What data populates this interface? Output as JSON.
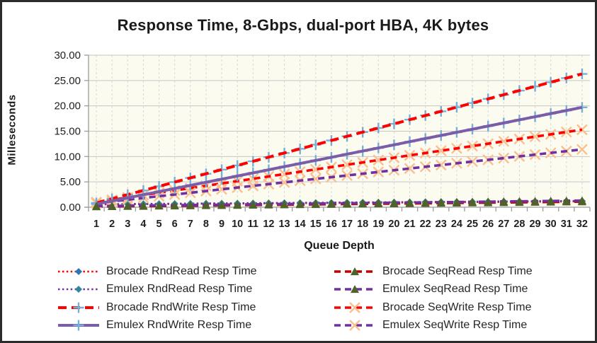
{
  "chart_data": {
    "type": "line",
    "title": "Response Time, 8-Gbps, dual-port HBA, 4K bytes",
    "xlabel": "Queue Depth",
    "ylabel": "Milleseconds",
    "ylim": [
      0,
      30
    ],
    "ytick_step": 5,
    "yticks": [
      "0.00",
      "5.00",
      "10.00",
      "15.00",
      "20.00",
      "25.00",
      "30.00"
    ],
    "x": [
      1,
      2,
      3,
      4,
      5,
      6,
      7,
      8,
      9,
      10,
      11,
      12,
      13,
      14,
      15,
      16,
      17,
      18,
      19,
      20,
      21,
      22,
      23,
      24,
      25,
      26,
      27,
      28,
      29,
      30,
      31,
      32
    ],
    "grid": {
      "horizontal": "solid",
      "vertical": "dashed"
    },
    "legend_position": "bottom-two-columns",
    "colors": {
      "plot_bg": "#FBFBF0",
      "grid_horizontal": "#C5C5C5",
      "grid_vertical": "#D8D8D8",
      "axis": "#9C9C9C",
      "red": "#FF0000",
      "dark_red": "#C00000",
      "purple": "#7030A0",
      "purple_solid": "#7A5CA8",
      "marker_plus_blue": "#77AFD6",
      "marker_x_peach": "#FABF8F",
      "marker_triangle_green": "#4F6228",
      "marker_diamond_blue": "#2E75B6",
      "marker_diamond_teal": "#31859C"
    },
    "paint_order": [
      0,
      1,
      4,
      6,
      7,
      2,
      3,
      5
    ],
    "legend_order": [
      0,
      4,
      1,
      5,
      2,
      6,
      3,
      7
    ],
    "series": [
      {
        "key": "brocade-rndread",
        "name": "Brocade RndRead Resp Time",
        "color": "#FF0000",
        "dash": "2.5 3.4",
        "width": 2.6,
        "marker": "diamond",
        "marker_color": "#2E75B6",
        "marker_size": 5,
        "marker_first": false,
        "values": [
          0.55,
          0.57,
          0.59,
          0.61,
          0.63,
          0.65,
          0.67,
          0.69,
          0.7,
          0.72,
          0.74,
          0.76,
          0.78,
          0.8,
          0.82,
          0.84,
          0.86,
          0.88,
          0.9,
          0.92,
          0.94,
          0.96,
          0.98,
          0.99,
          1.01,
          1.03,
          1.05,
          1.07,
          1.09,
          1.11,
          1.13,
          1.15
        ]
      },
      {
        "key": "emulex-rndread",
        "name": "Emulex RndRead Resp Time",
        "color": "#7030A0",
        "dash": "2.5 3.4",
        "width": 2.6,
        "marker": "diamond",
        "marker_color": "#31859C",
        "marker_size": 5,
        "marker_first": false,
        "values": [
          0.6,
          0.62,
          0.64,
          0.66,
          0.68,
          0.7,
          0.73,
          0.75,
          0.77,
          0.79,
          0.81,
          0.83,
          0.85,
          0.87,
          0.89,
          0.91,
          0.94,
          0.96,
          0.98,
          1.0,
          1.02,
          1.04,
          1.06,
          1.08,
          1.1,
          1.12,
          1.15,
          1.17,
          1.19,
          1.21,
          1.23,
          1.25
        ]
      },
      {
        "key": "brocade-rndwrite",
        "name": "Brocade RndWrite Resp Time",
        "color": "#FF0000",
        "dash": "12 7",
        "width": 4,
        "marker": "plus",
        "marker_color": "#77AFD6",
        "marker_size": 7.5,
        "marker_first": true,
        "values": [
          0.85,
          1.67,
          2.49,
          3.31,
          4.13,
          4.96,
          5.78,
          6.6,
          7.42,
          8.24,
          9.06,
          9.88,
          10.7,
          11.52,
          12.34,
          13.17,
          13.99,
          14.81,
          15.63,
          16.45,
          17.27,
          18.09,
          18.91,
          19.73,
          20.55,
          21.38,
          22.2,
          23.02,
          23.84,
          24.66,
          25.48,
          26.3
        ]
      },
      {
        "key": "emulex-rndwrite",
        "name": "Emulex RndWrite Resp Time",
        "color": "#7A5CA8",
        "dash": null,
        "width": 4,
        "marker": "plus",
        "marker_color": "#77AFD6",
        "marker_size": 7.5,
        "marker_first": true,
        "values": [
          0.62,
          1.24,
          1.85,
          2.47,
          3.08,
          3.7,
          4.31,
          4.93,
          5.54,
          6.16,
          6.78,
          7.39,
          8.01,
          8.62,
          9.24,
          9.85,
          10.47,
          11.08,
          11.7,
          12.31,
          12.93,
          13.55,
          14.16,
          14.78,
          15.39,
          16.01,
          16.62,
          17.24,
          17.85,
          18.47,
          19.08,
          19.7
        ]
      },
      {
        "key": "brocade-seqread",
        "name": "Brocade SeqRead Resp Time",
        "color": "#C00000",
        "dash": "9 6",
        "width": 3.6,
        "marker": "triangle",
        "marker_color": "#4F6228",
        "marker_size": 6,
        "marker_first": false,
        "values": [
          0.12,
          0.15,
          0.18,
          0.21,
          0.25,
          0.28,
          0.31,
          0.34,
          0.37,
          0.4,
          0.44,
          0.47,
          0.5,
          0.53,
          0.56,
          0.59,
          0.63,
          0.66,
          0.69,
          0.72,
          0.75,
          0.78,
          0.82,
          0.85,
          0.88,
          0.91,
          0.94,
          0.97,
          1.01,
          1.04,
          1.07,
          1.1
        ]
      },
      {
        "key": "emulex-seqread",
        "name": "Emulex SeqRead Resp Time",
        "color": "#7030A0",
        "dash": "9 6",
        "width": 3.6,
        "marker": "triangle",
        "marker_color": "#4F6228",
        "marker_size": 6,
        "marker_first": false,
        "values": [
          0.22,
          0.25,
          0.29,
          0.32,
          0.36,
          0.39,
          0.43,
          0.46,
          0.5,
          0.53,
          0.57,
          0.6,
          0.64,
          0.67,
          0.71,
          0.74,
          0.78,
          0.81,
          0.85,
          0.88,
          0.92,
          0.95,
          0.99,
          1.02,
          1.06,
          1.09,
          1.13,
          1.16,
          1.2,
          1.23,
          1.27,
          1.3
        ]
      },
      {
        "key": "brocade-seqwrite",
        "name": "Brocade SeqWrite Resp Time",
        "color": "#FF0000",
        "dash": "9 6",
        "width": 3.6,
        "marker": "x",
        "marker_color": "#FABF8F",
        "marker_size": 7,
        "marker_first": true,
        "values": [
          1.0,
          1.46,
          1.92,
          2.38,
          2.85,
          3.31,
          3.77,
          4.23,
          4.69,
          5.15,
          5.61,
          6.07,
          6.54,
          7.0,
          7.46,
          7.92,
          8.38,
          8.84,
          9.3,
          9.77,
          10.23,
          10.69,
          11.15,
          11.61,
          12.07,
          12.53,
          13.0,
          13.46,
          13.92,
          14.38,
          14.84,
          15.3
        ]
      },
      {
        "key": "emulex-seqwrite",
        "name": "Emulex SeqWrite Resp Time",
        "color": "#7030A0",
        "dash": "9 6",
        "width": 3.6,
        "marker": "x",
        "marker_color": "#FABF8F",
        "marker_size": 7,
        "marker_first": true,
        "values": [
          0.8,
          1.14,
          1.48,
          1.83,
          2.17,
          2.51,
          2.85,
          3.19,
          3.54,
          3.88,
          4.22,
          4.56,
          4.9,
          5.25,
          5.59,
          5.93,
          6.27,
          6.61,
          6.96,
          7.3,
          7.64,
          7.98,
          8.32,
          8.67,
          9.01,
          9.35,
          9.69,
          10.03,
          10.38,
          10.72,
          11.06,
          11.4
        ]
      }
    ]
  }
}
